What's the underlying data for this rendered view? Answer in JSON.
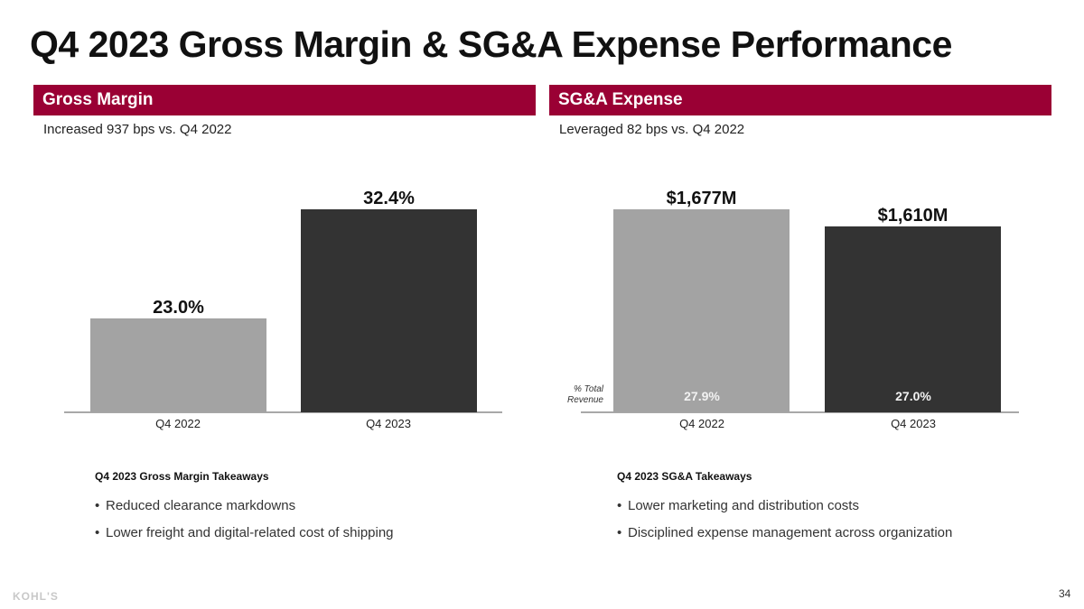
{
  "title": "Q4 2023 Gross Margin & SG&A Expense Performance",
  "colors": {
    "band": "#9a0034",
    "bar_prior": "#a3a3a3",
    "bar_current": "#333333",
    "axis": "#8c8c8c"
  },
  "gross_margin": {
    "header": "Gross Margin",
    "subtitle": "Increased 937 bps vs. Q4 2022",
    "takeaways_title": "Q4 2023 Gross Margin Takeaways",
    "takeaways": [
      "Reduced clearance markdowns",
      "Lower freight and digital-related cost of shipping"
    ]
  },
  "sga": {
    "header": "SG&A Expense",
    "subtitle": "Leveraged 82 bps vs. Q4 2022",
    "pct_label_line1": "% Total",
    "pct_label_line2": "Revenue",
    "takeaways_title": "Q4 2023 SG&A Takeaways",
    "takeaways": [
      "Lower marketing and distribution costs",
      "Disciplined expense management across organization"
    ]
  },
  "chart_data": [
    {
      "type": "bar",
      "title": "Gross Margin",
      "categories": [
        "Q4 2022",
        "Q4 2023"
      ],
      "values": [
        23.0,
        32.4
      ],
      "labels": [
        "23.0%",
        "32.4%"
      ],
      "unit": "%",
      "ylim": [
        14.9,
        32.4
      ],
      "xlabel": "",
      "ylabel": "",
      "grid": false,
      "legend": "none"
    },
    {
      "type": "bar",
      "title": "SG&A Expense",
      "categories": [
        "Q4 2022",
        "Q4 2023"
      ],
      "values": [
        1677,
        1610
      ],
      "labels": [
        "$1,677M",
        "$1,610M"
      ],
      "unit": "$M",
      "secondary_values": [
        27.9,
        27.0
      ],
      "secondary_labels": [
        "27.9%",
        "27.0%"
      ],
      "secondary_name": "% Total Revenue",
      "ylim": [
        880,
        1677
      ],
      "xlabel": "",
      "ylabel": "",
      "grid": false,
      "legend": "none"
    }
  ],
  "footer": {
    "logo": "KOHL'S",
    "page_number": "34"
  }
}
